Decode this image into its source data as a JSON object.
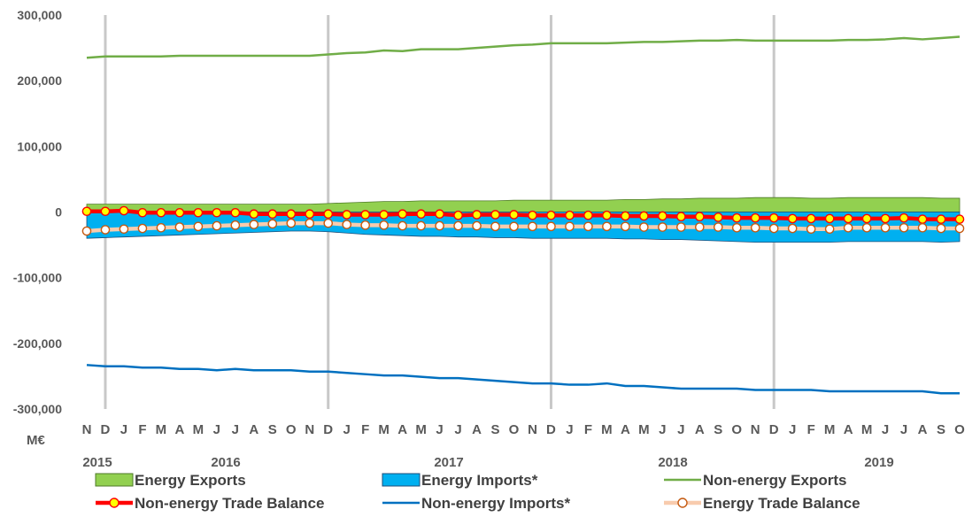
{
  "chart_data": {
    "type": "line",
    "unit_label": "M€",
    "ylim": [
      -300000,
      300000
    ],
    "y_ticks": [
      "300,000",
      "200,000",
      "100,000",
      "0",
      "-100,000",
      "-200,000",
      "-300,000"
    ],
    "y_tick_values": [
      300000,
      200000,
      100000,
      0,
      -100000,
      -200000,
      -300000
    ],
    "x_month_labels": [
      "N",
      "D",
      "J",
      "F",
      "M",
      "A",
      "M",
      "J",
      "J",
      "A",
      "S",
      "O",
      "N",
      "D",
      "J",
      "F",
      "M",
      "A",
      "M",
      "J",
      "J",
      "A",
      "S",
      "O",
      "N",
      "D",
      "J",
      "F",
      "M",
      "A",
      "M",
      "J",
      "J",
      "A",
      "S",
      "O",
      "N",
      "D",
      "J",
      "F",
      "M",
      "A",
      "M",
      "J",
      "J",
      "A",
      "S",
      "O"
    ],
    "x_months": [
      "2015-11",
      "2015-12",
      "2016-01",
      "2016-02",
      "2016-03",
      "2016-04",
      "2016-05",
      "2016-06",
      "2016-07",
      "2016-08",
      "2016-09",
      "2016-10",
      "2016-11",
      "2016-12",
      "2017-01",
      "2017-02",
      "2017-03",
      "2017-04",
      "2017-05",
      "2017-06",
      "2017-07",
      "2017-08",
      "2017-09",
      "2017-10",
      "2017-11",
      "2017-12",
      "2018-01",
      "2018-02",
      "2018-03",
      "2018-04",
      "2018-05",
      "2018-06",
      "2018-07",
      "2018-08",
      "2018-09",
      "2018-10",
      "2018-11",
      "2018-12",
      "2019-01",
      "2019-02",
      "2019-03",
      "2019-04",
      "2019-05",
      "2019-06",
      "2019-07",
      "2019-08",
      "2019-09",
      "2019-10"
    ],
    "year_labels": [
      "2015",
      "2016",
      "2017",
      "2018",
      "2019"
    ],
    "grid": "vertical lines at each December",
    "legend_position": "bottom",
    "series": [
      {
        "name": "Energy Exports",
        "kind": "area",
        "color": "#92D050",
        "stroke": "#4E7A27",
        "values": [
          12000,
          12000,
          12000,
          12000,
          12000,
          12000,
          12000,
          12000,
          12000,
          12000,
          12000,
          12000,
          12000,
          13000,
          14000,
          15000,
          16000,
          16000,
          17000,
          17000,
          17000,
          17000,
          17000,
          18000,
          18000,
          18000,
          18000,
          18000,
          18000,
          19000,
          19000,
          20000,
          20000,
          21000,
          21000,
          21000,
          22000,
          22000,
          22000,
          21000,
          21000,
          22000,
          22000,
          22000,
          22000,
          22000,
          21000,
          21000
        ]
      },
      {
        "name": "Energy Imports*",
        "kind": "area",
        "color": "#00B0F0",
        "stroke": "#1F4E79",
        "values": [
          -40000,
          -39000,
          -38000,
          -37000,
          -36000,
          -35000,
          -34000,
          -33000,
          -32000,
          -31000,
          -30000,
          -29000,
          -29000,
          -30000,
          -32000,
          -34000,
          -35000,
          -36000,
          -37000,
          -37000,
          -38000,
          -38000,
          -39000,
          -39000,
          -40000,
          -40000,
          -40000,
          -40000,
          -40000,
          -41000,
          -41000,
          -42000,
          -42000,
          -43000,
          -44000,
          -45000,
          -46000,
          -46000,
          -46000,
          -46000,
          -46000,
          -45000,
          -45000,
          -45000,
          -45000,
          -45000,
          -46000,
          -45000
        ]
      },
      {
        "name": "Non-energy Exports",
        "kind": "line",
        "color": "#70AD47",
        "values": [
          235000,
          237000,
          237000,
          237000,
          237000,
          238000,
          238000,
          238000,
          238000,
          238000,
          238000,
          238000,
          238000,
          240000,
          242000,
          243000,
          246000,
          245000,
          248000,
          248000,
          248000,
          250000,
          252000,
          254000,
          255000,
          257000,
          257000,
          257000,
          257000,
          258000,
          259000,
          259000,
          260000,
          261000,
          261000,
          262000,
          261000,
          261000,
          261000,
          261000,
          261000,
          262000,
          262000,
          263000,
          265000,
          263000,
          265000,
          267000
        ]
      },
      {
        "name": "Non-energy Trade Balance",
        "kind": "line-marker",
        "color": "#FF0000",
        "marker_fill": "#FFFF00",
        "values": [
          1000,
          1000,
          2000,
          -1000,
          -1000,
          -1000,
          -1000,
          -1000,
          -1000,
          -3000,
          -3000,
          -3000,
          -3000,
          -3000,
          -4000,
          -4000,
          -4000,
          -3000,
          -3000,
          -3000,
          -5000,
          -4000,
          -4000,
          -4000,
          -5000,
          -5000,
          -5000,
          -5000,
          -5000,
          -6000,
          -6000,
          -6000,
          -7000,
          -7000,
          -8000,
          -9000,
          -9000,
          -9000,
          -10000,
          -10000,
          -10000,
          -10000,
          -10000,
          -10000,
          -9000,
          -11000,
          -11000,
          -11000
        ]
      },
      {
        "name": "Non-energy Imports*",
        "kind": "line",
        "color": "#0070C0",
        "values": [
          -233000,
          -235000,
          -235000,
          -237000,
          -237000,
          -239000,
          -239000,
          -241000,
          -239000,
          -241000,
          -241000,
          -241000,
          -243000,
          -243000,
          -245000,
          -247000,
          -249000,
          -249000,
          -251000,
          -253000,
          -253000,
          -255000,
          -257000,
          -259000,
          -261000,
          -261000,
          -263000,
          -263000,
          -261000,
          -265000,
          -265000,
          -267000,
          -269000,
          -269000,
          -269000,
          -269000,
          -271000,
          -271000,
          -271000,
          -271000,
          -273000,
          -273000,
          -273000,
          -273000,
          -273000,
          -273000,
          -276000,
          -276000
        ]
      },
      {
        "name": "Energy Trade Balance",
        "kind": "line-marker",
        "color": "#F8CBAD",
        "marker_fill": "#FFFFFF",
        "marker_stroke": "#C55A11",
        "values": [
          -29000,
          -27000,
          -26000,
          -25000,
          -24000,
          -23000,
          -22000,
          -21000,
          -20000,
          -19000,
          -18000,
          -17000,
          -17000,
          -17000,
          -19000,
          -20000,
          -20000,
          -21000,
          -21000,
          -21000,
          -21000,
          -21000,
          -22000,
          -22000,
          -22000,
          -22000,
          -22000,
          -22000,
          -22000,
          -22000,
          -23000,
          -23000,
          -23000,
          -23000,
          -23000,
          -24000,
          -24000,
          -25000,
          -25000,
          -26000,
          -26000,
          -24000,
          -24000,
          -24000,
          -24000,
          -24000,
          -25000,
          -25000
        ]
      }
    ]
  }
}
